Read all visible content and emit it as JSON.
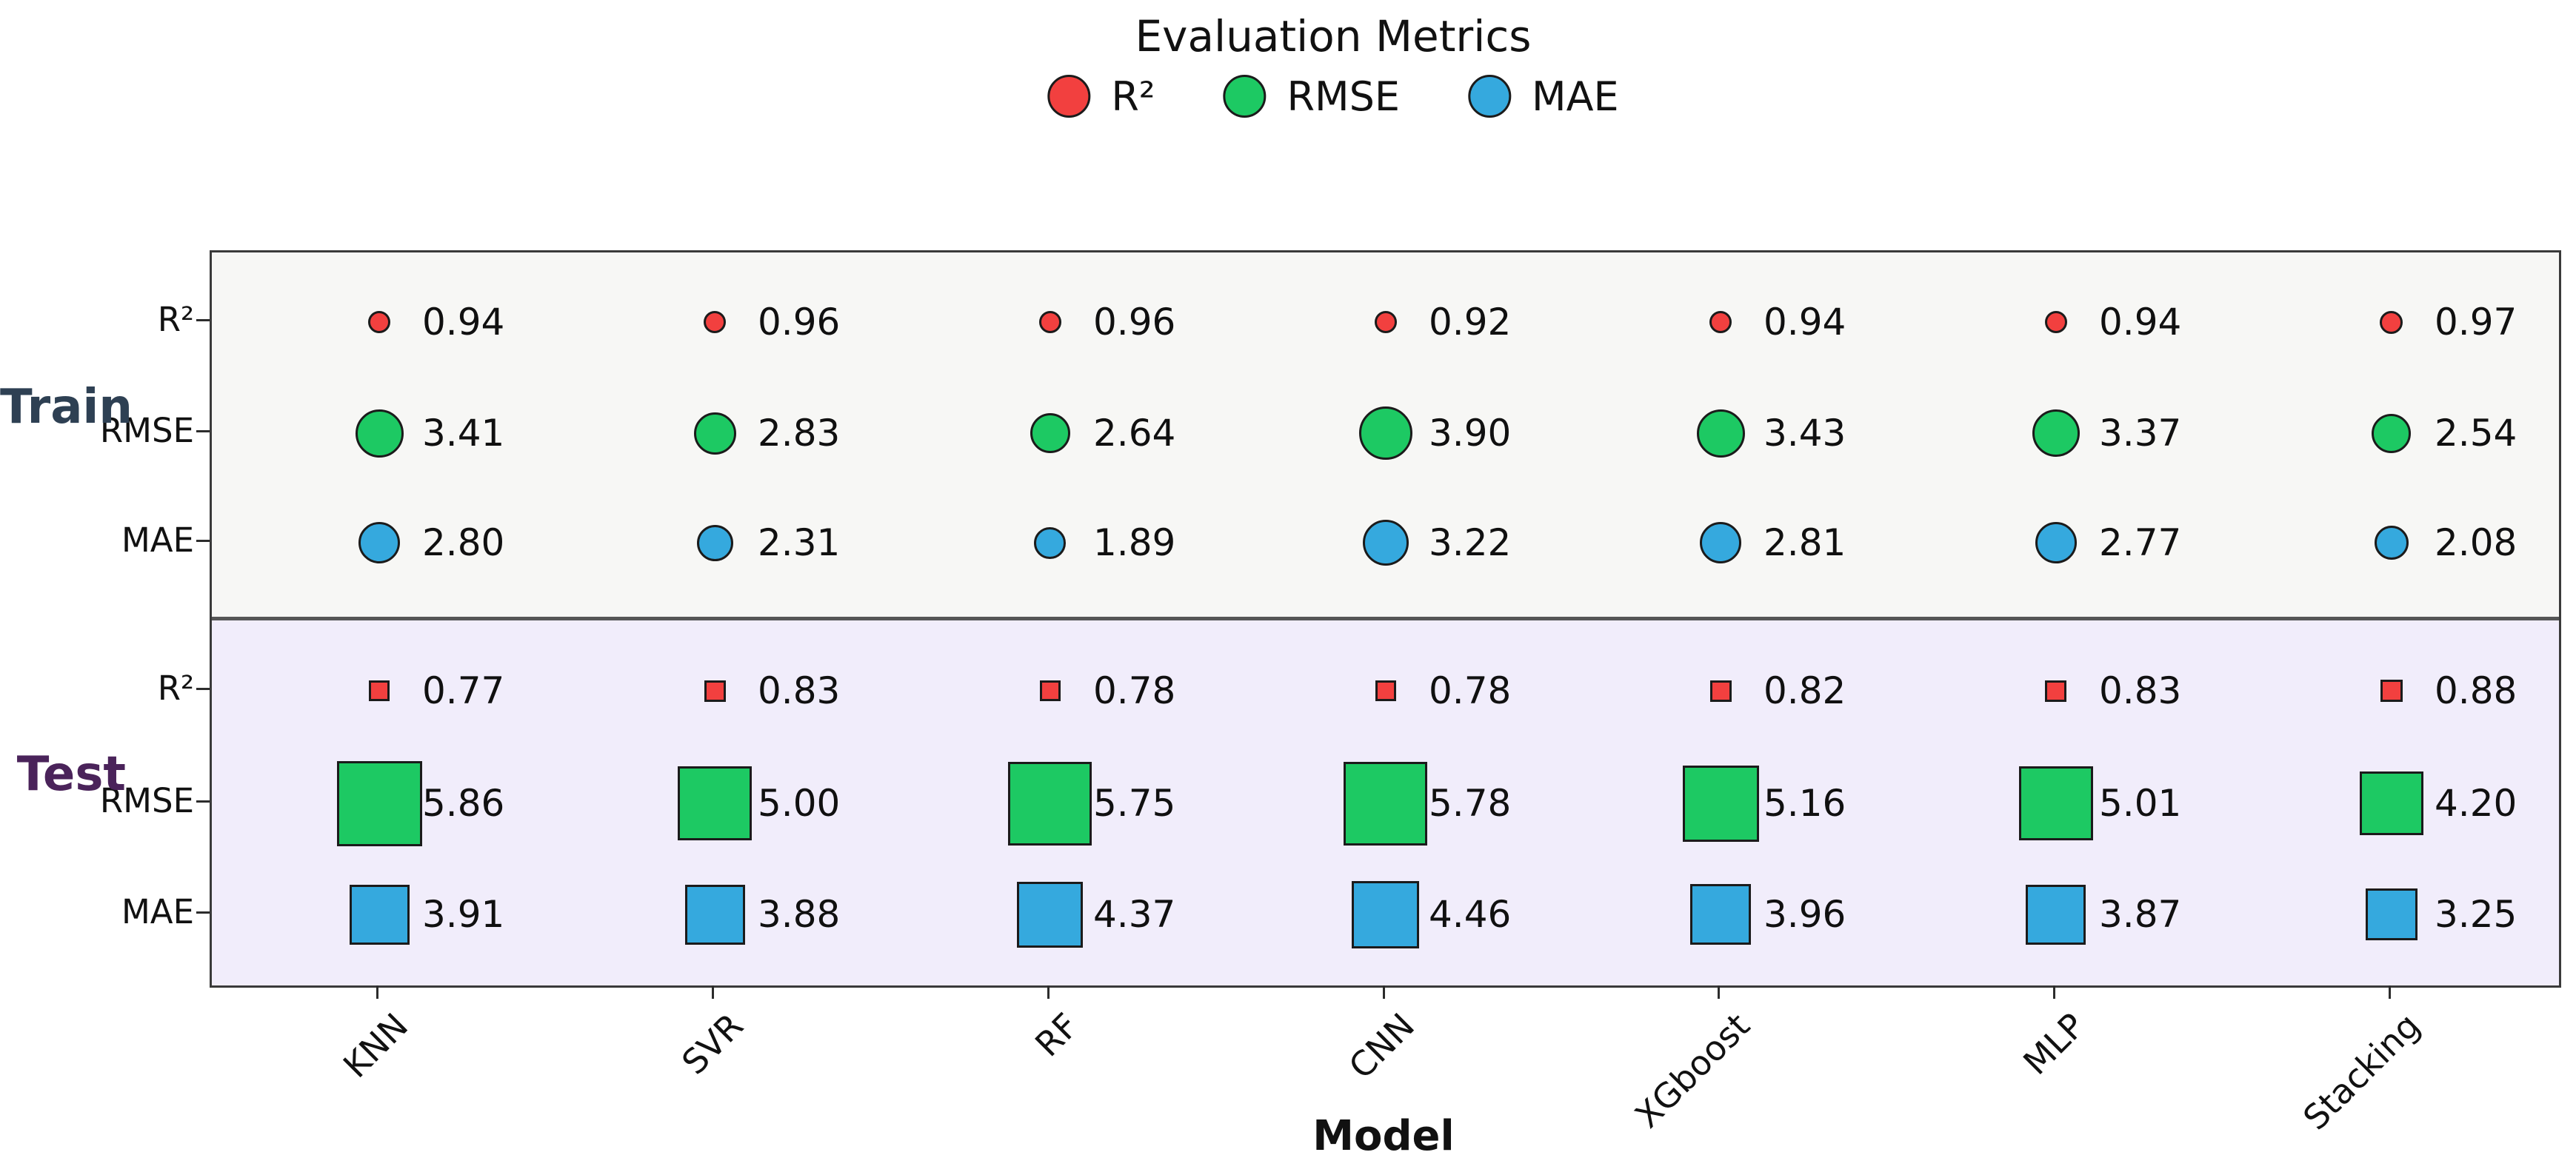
{
  "chart_data": {
    "type": "scatter",
    "title": "Evaluation Metrics",
    "xlabel": "Model",
    "x_categories": [
      "KNN",
      "SVR",
      "RF",
      "CNN",
      "XGboost",
      "MLP",
      "Stacking"
    ],
    "row_labels": [
      "R²",
      "RMSE",
      "MAE"
    ],
    "legend_position": "top center",
    "legend_entries": [
      {
        "label": "R²",
        "color": "#f2403f"
      },
      {
        "label": "RMSE",
        "color": "#1dc963"
      },
      {
        "label": "MAE",
        "color": "#35a9de"
      }
    ],
    "marker_size_encoding": "marker size proportional to value",
    "value_format": "0.00",
    "groups": [
      {
        "name": "Train",
        "marker": "circle",
        "band_bg": "#f7f7f5",
        "label_color": "#2e4053",
        "series": [
          {
            "metric": "R²",
            "color": "#f2403f",
            "values": [
              0.94,
              0.96,
              0.96,
              0.92,
              0.94,
              0.94,
              0.97
            ]
          },
          {
            "metric": "RMSE",
            "color": "#1dc963",
            "values": [
              3.41,
              2.83,
              2.64,
              3.9,
              3.43,
              3.37,
              2.54
            ]
          },
          {
            "metric": "MAE",
            "color": "#35a9de",
            "values": [
              2.8,
              2.31,
              1.89,
              3.22,
              2.81,
              2.77,
              2.08
            ]
          }
        ]
      },
      {
        "name": "Test",
        "marker": "square",
        "band_bg": "#f1edfb",
        "label_color": "#4a235a",
        "series": [
          {
            "metric": "R²",
            "color": "#f2403f",
            "values": [
              0.77,
              0.83,
              0.78,
              0.78,
              0.82,
              0.83,
              0.88
            ]
          },
          {
            "metric": "RMSE",
            "color": "#1dc963",
            "values": [
              5.86,
              5.0,
              5.75,
              5.78,
              5.16,
              5.01,
              4.2
            ]
          },
          {
            "metric": "MAE",
            "color": "#35a9de",
            "values": [
              3.91,
              3.88,
              4.37,
              4.46,
              3.96,
              3.87,
              3.25
            ]
          }
        ]
      }
    ]
  }
}
